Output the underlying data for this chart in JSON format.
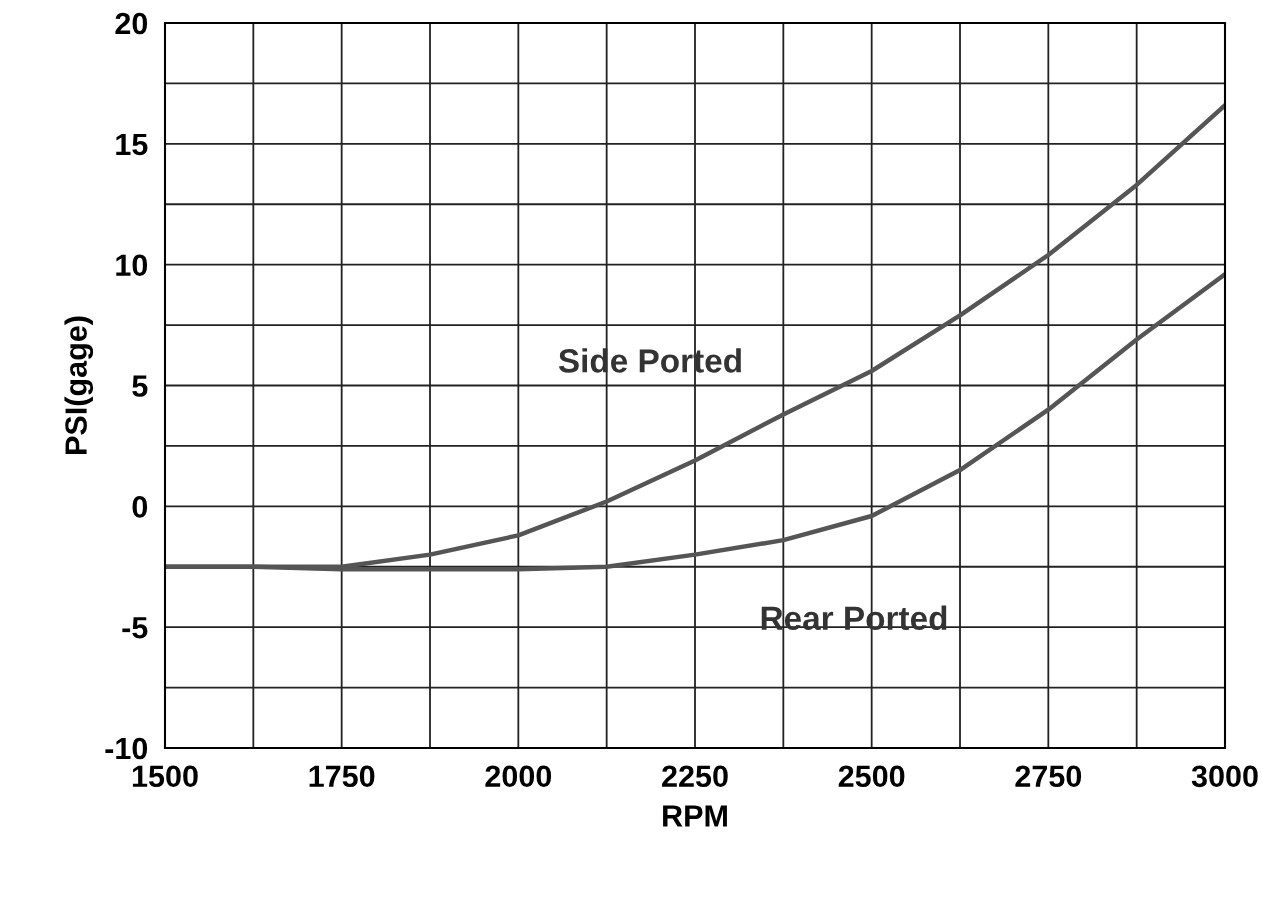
{
  "chart_data": {
    "type": "line",
    "xlabel": "RPM",
    "ylabel": "PSI(gage)",
    "x": [
      1500,
      1625,
      1750,
      1875,
      2000,
      2125,
      2250,
      2375,
      2500,
      2625,
      2750,
      2875,
      3000
    ],
    "series": [
      {
        "name": "Side Ported",
        "color": "#555555",
        "values": [
          -2.5,
          -2.5,
          -2.5,
          -2.0,
          -1.2,
          0.2,
          1.9,
          3.8,
          5.6,
          7.9,
          10.4,
          13.3,
          16.6
        ]
      },
      {
        "name": "Rear Ported",
        "color": "#555555",
        "values": [
          -2.5,
          -2.5,
          -2.6,
          -2.6,
          -2.6,
          -2.5,
          -2.0,
          -1.4,
          -0.4,
          1.5,
          4.0,
          6.9,
          9.6
        ]
      }
    ],
    "xlim": [
      1500,
      3000
    ],
    "ylim": [
      -10,
      20
    ],
    "xticks": [
      1500,
      1750,
      2000,
      2250,
      2500,
      2750,
      3000
    ],
    "yticks": [
      -10,
      -5,
      0,
      5,
      10,
      15,
      20
    ],
    "grid": true,
    "legend": false,
    "marker": "none",
    "line_style": "solid"
  }
}
